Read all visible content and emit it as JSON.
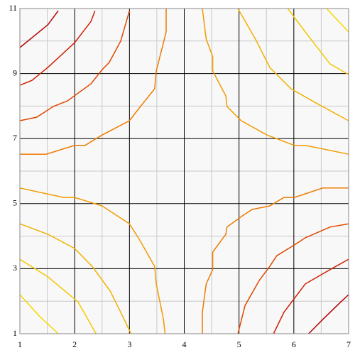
{
  "chart_data": {
    "type": "contour",
    "xlim": [
      1,
      7
    ],
    "ylim": [
      1,
      11
    ],
    "xticks": [
      1,
      2,
      3,
      4,
      5,
      6,
      7
    ],
    "yticks": [
      1,
      3,
      5,
      7,
      9,
      11
    ],
    "grid": true,
    "series": [
      {
        "color": "#b40000",
        "x": [
          1,
          1.51,
          1.7
        ],
        "y": [
          9.8,
          10.5,
          10.93
        ]
      },
      {
        "color": "#d02000",
        "x": [
          1,
          1.22,
          1.51,
          2.0,
          2.3,
          2.37
        ],
        "y": [
          8.64,
          8.79,
          9.19,
          9.95,
          10.61,
          10.93
        ]
      },
      {
        "color": "#e04800",
        "x": [
          1,
          1.31,
          1.61,
          1.87,
          2.3,
          2.5,
          2.63,
          2.84,
          3.0
        ],
        "y": [
          7.55,
          7.66,
          7.99,
          8.16,
          8.69,
          9.12,
          9.34,
          10.0,
          10.93
        ]
      },
      {
        "color": "#ee7a00",
        "x": [
          1,
          1.48,
          2.0,
          2.19,
          2.5,
          3.0,
          3.2,
          3.46,
          3.49,
          3.67,
          3.67
        ],
        "y": [
          6.52,
          6.52,
          6.79,
          6.79,
          7.11,
          7.55,
          7.99,
          8.53,
          9.08,
          10.28,
          11
        ]
      },
      {
        "color": "#f39a00",
        "x": [
          4.33,
          4.4,
          4.52,
          4.52,
          4.76,
          4.78,
          5.04,
          5.51,
          6.01,
          6.21,
          7.0
        ],
        "y": [
          11,
          10.06,
          9.52,
          9.08,
          8.31,
          7.99,
          7.55,
          7.11,
          6.79,
          6.79,
          6.52
        ]
      },
      {
        "color": "#f2b000",
        "x": [
          4.98,
          5.3,
          5.56,
          5.95,
          6.4,
          7.0
        ],
        "y": [
          11,
          10.06,
          9.19,
          8.53,
          8.1,
          7.55
        ]
      },
      {
        "color": "#f5c800",
        "x": [
          5.89,
          6.21,
          6.66,
          7.0
        ],
        "y": [
          11,
          10.28,
          9.3,
          8.97
        ]
      },
      {
        "color": "#f7d800",
        "x": [
          6.6,
          7.0
        ],
        "y": [
          11,
          10.28
        ]
      },
      {
        "color": "#f39a00",
        "x": [
          1,
          1.8,
          2.0,
          2.5,
          3.0,
          3.2,
          3.46,
          3.49,
          3.62,
          3.65
        ],
        "y": [
          5.48,
          5.19,
          5.19,
          4.93,
          4.38,
          3.84,
          3.07,
          2.53,
          1.44,
          1
        ]
      },
      {
        "color": "#f2b000",
        "x": [
          1,
          1.51,
          2.0,
          2.32,
          2.65,
          2.84,
          3.03
        ],
        "y": [
          4.38,
          4.06,
          3.62,
          3.07,
          2.31,
          1.66,
          1
        ]
      },
      {
        "color": "#f5c800",
        "x": [
          1,
          1.51,
          2.06,
          2.39
        ],
        "y": [
          3.29,
          2.75,
          1.98,
          1
        ]
      },
      {
        "color": "#f7d800",
        "x": [
          1,
          1.35,
          1.7
        ],
        "y": [
          2.2,
          1.55,
          1
        ]
      },
      {
        "color": "#ee7a00",
        "x": [
          4.33,
          4.33,
          4.4,
          4.52,
          4.52,
          4.76,
          4.78,
          5.04,
          5.24,
          5.56,
          5.82,
          6.01,
          6.53,
          7.0
        ],
        "y": [
          1,
          1.66,
          2.53,
          2.97,
          3.51,
          4.06,
          4.28,
          4.6,
          4.82,
          4.93,
          5.19,
          5.19,
          5.48,
          5.48
        ]
      },
      {
        "color": "#e04800",
        "x": [
          4.98,
          5.11,
          5.37,
          5.56,
          5.69,
          6.01,
          6.21,
          6.66,
          7.0
        ],
        "y": [
          1,
          1.87,
          2.64,
          3.07,
          3.4,
          3.73,
          3.95,
          4.28,
          4.38
        ]
      },
      {
        "color": "#d02000",
        "x": [
          5.63,
          5.82,
          6.21,
          6.66,
          7.0
        ],
        "y": [
          1,
          1.66,
          2.53,
          2.97,
          3.29
        ]
      },
      {
        "color": "#b40000",
        "x": [
          6.27,
          6.53,
          6.86,
          7.0
        ],
        "y": [
          1,
          1.44,
          1.98,
          2.2
        ]
      }
    ]
  }
}
